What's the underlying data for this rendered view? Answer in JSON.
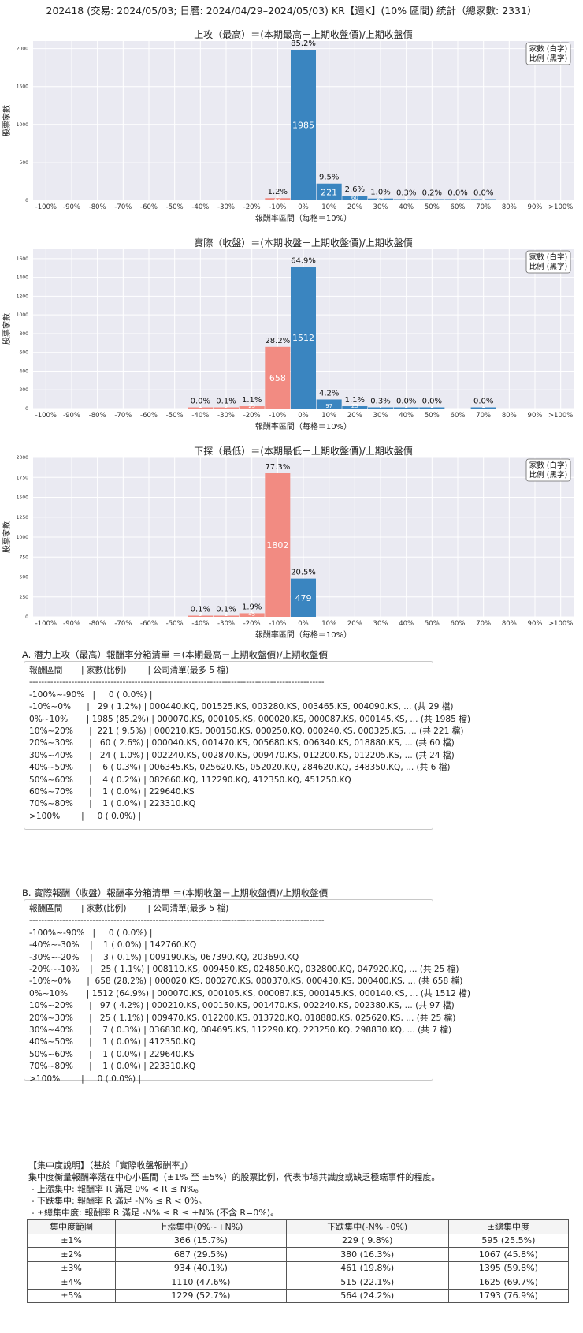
{
  "page_title": "202418 (交易: 2024/05/03; 日曆: 2024/04/29–2024/05/03) KR【週K】(10% 區間) 統計（總家數: 2331）",
  "colors": {
    "positive": "#3a85c0",
    "negative": "#f28b82",
    "plot_bg": "#eaeaf2"
  },
  "chart_data": [
    {
      "type": "bar",
      "title": "上攻（最高）＝(本期最高－上期收盤價)/上期收盤價",
      "xlabel": "報酬率區間（每格＝10%）",
      "ylabel": "股票家數",
      "legend": [
        "家數 (白字)",
        "比例 (黑字)"
      ],
      "legend_position": "top-right",
      "ylim": [
        0,
        2100
      ],
      "yticks": [
        0,
        500,
        1000,
        1500,
        2000
      ],
      "categories": [
        "-100%",
        "-90%",
        "-80%",
        "-70%",
        "-60%",
        "-50%",
        "-40%",
        "-30%",
        "-20%",
        "-10%",
        "0%",
        "10%",
        "20%",
        "30%",
        "40%",
        "50%",
        "60%",
        "70%",
        "80%",
        "90%",
        ">100%"
      ],
      "values": [
        0,
        0,
        0,
        0,
        0,
        0,
        0,
        0,
        0,
        29,
        1985,
        221,
        60,
        24,
        6,
        4,
        1,
        1,
        0,
        0,
        0
      ],
      "pct_labels": [
        "",
        "",
        "",
        "",
        "",
        "",
        "",
        "",
        "",
        "1.2%",
        "85.2%",
        "9.5%",
        "2.6%",
        "1.0%",
        "0.3%",
        "0.2%",
        "0.0%",
        "0.0%",
        "",
        "",
        ""
      ],
      "count_labels": [
        "",
        "",
        "",
        "",
        "",
        "",
        "",
        "",
        "",
        "29",
        "1985",
        "221",
        "60",
        "24",
        "6",
        "4",
        "1",
        "1",
        "",
        "",
        ""
      ]
    },
    {
      "type": "bar",
      "title": "實際（收盤）＝(本期收盤－上期收盤價)/上期收盤價",
      "xlabel": "報酬率區間（每格＝10%）",
      "ylabel": "股票家數",
      "legend": [
        "家數 (白字)",
        "比例 (黑字)"
      ],
      "legend_position": "top-right",
      "ylim": [
        0,
        1700
      ],
      "yticks": [
        0,
        200,
        400,
        600,
        800,
        1000,
        1200,
        1400,
        1600
      ],
      "categories": [
        "-100%",
        "-90%",
        "-80%",
        "-70%",
        "-60%",
        "-50%",
        "-40%",
        "-30%",
        "-20%",
        "-10%",
        "0%",
        "10%",
        "20%",
        "30%",
        "40%",
        "50%",
        "60%",
        "70%",
        "80%",
        "90%",
        ">100%"
      ],
      "values": [
        0,
        0,
        0,
        0,
        0,
        0,
        1,
        3,
        25,
        658,
        1512,
        97,
        25,
        7,
        1,
        1,
        0,
        1,
        0,
        0,
        0
      ],
      "pct_labels": [
        "",
        "",
        "",
        "",
        "",
        "",
        "0.0%",
        "0.1%",
        "1.1%",
        "28.2%",
        "64.9%",
        "4.2%",
        "1.1%",
        "0.3%",
        "0.0%",
        "0.0%",
        "",
        "0.0%",
        "",
        "",
        ""
      ],
      "count_labels": [
        "",
        "",
        "",
        "",
        "",
        "",
        "1",
        "3",
        "25",
        "658",
        "1512",
        "97",
        "25",
        "7",
        "1",
        "1",
        "",
        "1",
        "",
        "",
        ""
      ]
    },
    {
      "type": "bar",
      "title": "下探（最低）＝(本期最低－上期收盤價)/上期收盤價",
      "xlabel": "報酬率區間（每格＝10%）",
      "ylabel": "股票家數",
      "legend": [
        "家數 (白字)",
        "比例 (黑字)"
      ],
      "legend_position": "top-right",
      "ylim": [
        0,
        2000
      ],
      "yticks": [
        0,
        250,
        500,
        750,
        1000,
        1250,
        1500,
        1750,
        2000
      ],
      "categories": [
        "-100%",
        "-90%",
        "-80%",
        "-70%",
        "-60%",
        "-50%",
        "-40%",
        "-30%",
        "-20%",
        "-10%",
        "0%",
        "10%",
        "20%",
        "30%",
        "40%",
        "50%",
        "60%",
        "70%",
        "80%",
        "90%",
        ">100%"
      ],
      "values": [
        0,
        0,
        0,
        0,
        0,
        0,
        3,
        2,
        45,
        1802,
        479,
        0,
        0,
        0,
        0,
        0,
        0,
        0,
        0,
        0,
        0
      ],
      "pct_labels": [
        "",
        "",
        "",
        "",
        "",
        "",
        "0.1%",
        "0.1%",
        "1.9%",
        "77.3%",
        "20.5%",
        "",
        "",
        "",
        "",
        "",
        "",
        "",
        "",
        "",
        ""
      ],
      "count_labels": [
        "",
        "",
        "",
        "",
        "",
        "",
        "3",
        "2",
        "45",
        "1802",
        "479",
        "",
        "",
        "",
        "",
        "",
        "",
        "",
        "",
        "",
        ""
      ]
    }
  ],
  "section_a": {
    "title": "A. 潛力上攻（最高）報酬率分箱清單 ＝(本期最高－上期收盤價)/上期收盤價",
    "lines": [
      "報酬區間       | 家數(比例)        | 公司清單(最多 5 檔)",
      "--------------------------------------------------------------------------------------------------",
      "-100%~-90%   |     0 ( 0.0%) |",
      "-10%~0%      |   29 ( 1.2%) | 000440.KQ, 001525.KS, 003280.KS, 003465.KS, 004090.KS, ... (共 29 檔)",
      "0%~10%       | 1985 (85.2%) | 000070.KS, 000105.KS, 000020.KS, 000087.KS, 000145.KS, ... (共 1985 檔)",
      "10%~20%      |  221 ( 9.5%) | 000210.KS, 000150.KS, 000250.KQ, 000240.KS, 000325.KS, ... (共 221 檔)",
      "20%~30%      |   60 ( 2.6%) | 000040.KS, 001470.KS, 005680.KS, 006340.KS, 018880.KS, ... (共 60 檔)",
      "30%~40%      |   24 ( 1.0%) | 002240.KS, 002870.KS, 009470.KS, 012200.KS, 012205.KS, ... (共 24 檔)",
      "40%~50%      |    6 ( 0.3%) | 006345.KS, 025620.KS, 052020.KQ, 284620.KQ, 348350.KQ, ... (共 6 檔)",
      "50%~60%      |    4 ( 0.2%) | 082660.KQ, 112290.KQ, 412350.KQ, 451250.KQ",
      "60%~70%      |    1 ( 0.0%) | 229640.KS",
      "70%~80%      |    1 ( 0.0%) | 223310.KQ",
      ">100%        |     0 ( 0.0%) |"
    ]
  },
  "section_b": {
    "title": "B. 實際報酬（收盤）報酬率分箱清單 ＝(本期收盤－上期收盤價)/上期收盤價",
    "lines": [
      "報酬區間       | 家數(比例)        | 公司清單(最多 5 檔)",
      "--------------------------------------------------------------------------------------------------",
      "-100%~-90%   |     0 ( 0.0%) |",
      "-40%~-30%    |    1 ( 0.0%) | 142760.KQ",
      "-30%~-20%    |    3 ( 0.1%) | 009190.KS, 067390.KQ, 203690.KQ",
      "-20%~-10%    |   25 ( 1.1%) | 008110.KS, 009450.KS, 024850.KQ, 032800.KQ, 047920.KQ, ... (共 25 檔)",
      "-10%~0%      |  658 (28.2%) | 000020.KS, 000270.KS, 000370.KS, 000430.KS, 000400.KS, ... (共 658 檔)",
      "0%~10%       | 1512 (64.9%) | 000070.KS, 000105.KS, 000087.KS, 000145.KS, 000140.KS, ... (共 1512 檔)",
      "10%~20%      |   97 ( 4.2%) | 000210.KS, 000150.KS, 001470.KS, 002240.KS, 002380.KS, ... (共 97 檔)",
      "20%~30%      |   25 ( 1.1%) | 009470.KS, 012200.KS, 013720.KQ, 018880.KS, 025620.KS, ... (共 25 檔)",
      "30%~40%      |    7 ( 0.3%) | 036830.KQ, 084695.KS, 112290.KQ, 223250.KQ, 298830.KQ, ... (共 7 檔)",
      "40%~50%      |    1 ( 0.0%) | 412350.KQ",
      "50%~60%      |    1 ( 0.0%) | 229640.KS",
      "70%~80%      |    1 ( 0.0%) | 223310.KQ",
      ">100%        |     0 ( 0.0%) |"
    ]
  },
  "concentration": {
    "lines": [
      "【集中度說明】（基於「實際收盤報酬率」）",
      "集中度衡量報酬率落在中心小區間（±1% 至 ±5%）的股票比例，代表市場共識度或缺乏極端事件的程度。",
      " - 上漲集中: 報酬率 R 滿足 0% < R ≤ N%。",
      " - 下跌集中: 報酬率 R 滿足 -N% ≤ R < 0%。",
      " - ±總集中度: 報酬率 R 滿足 -N% ≤ R ≤ +N% (不含 R=0%)。"
    ],
    "headers": [
      "集中度範圍",
      "上漲集中(0%~+N%)",
      "下跌集中(-N%~0%)",
      "±總集中度"
    ],
    "rows": [
      [
        "±1%",
        "366 (15.7%)",
        "229 ( 9.8%)",
        "595 (25.5%)"
      ],
      [
        "±2%",
        "687 (29.5%)",
        "380 (16.3%)",
        "1067 (45.8%)"
      ],
      [
        "±3%",
        "934 (40.1%)",
        "461 (19.8%)",
        "1395 (59.8%)"
      ],
      [
        "±4%",
        "1110 (47.6%)",
        "515 (22.1%)",
        "1625 (69.7%)"
      ],
      [
        "±5%",
        "1229 (52.7%)",
        "564 (24.2%)",
        "1793 (76.9%)"
      ]
    ]
  }
}
